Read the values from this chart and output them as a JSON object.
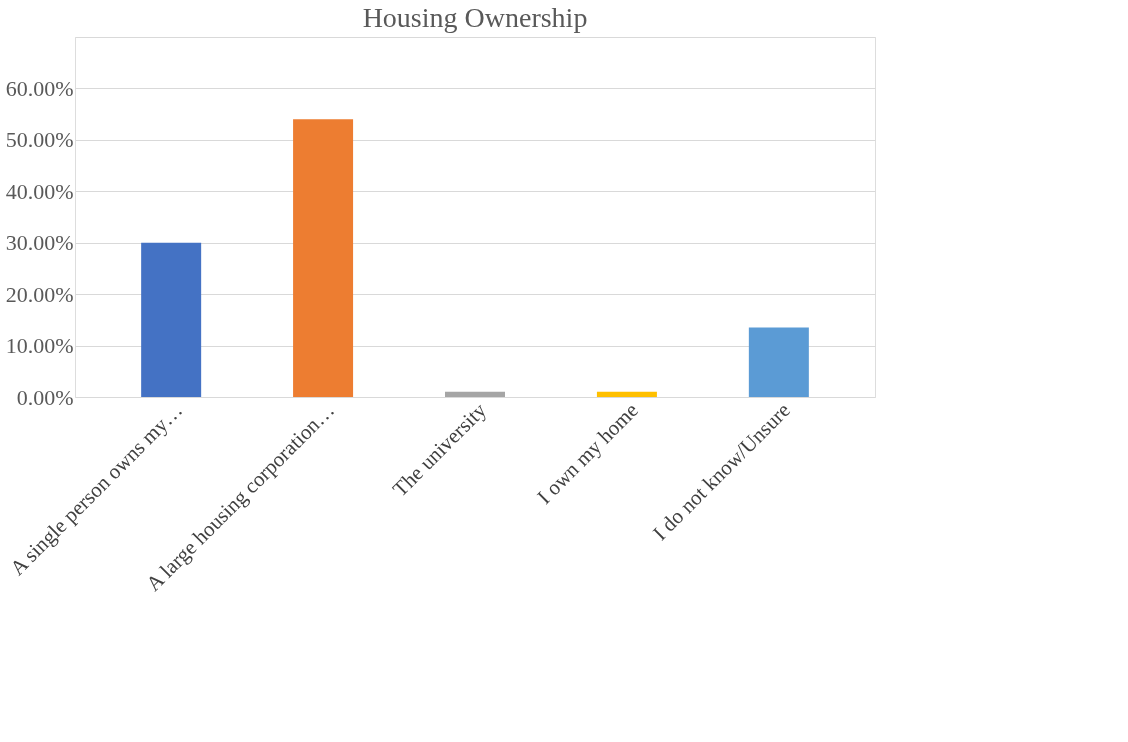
{
  "chart_data": {
    "type": "bar",
    "title": "Housing Ownership",
    "categories": [
      "A single person owns my…",
      "A large housing corporation…",
      "The university",
      "I own my home",
      "I do not know/Unsure"
    ],
    "values": [
      30,
      54,
      1,
      1,
      13.5
    ],
    "colors": [
      "#4472c4",
      "#ed7d31",
      "#a5a5a5",
      "#ffc000",
      "#5b9bd5"
    ],
    "ylim": [
      0,
      70
    ],
    "yticks": [
      {
        "value": 0,
        "label": "0.00%"
      },
      {
        "value": 10,
        "label": "10.00%"
      },
      {
        "value": 20,
        "label": "20.00%"
      },
      {
        "value": 30,
        "label": "30.00%"
      },
      {
        "value": 40,
        "label": "40.00%"
      },
      {
        "value": 50,
        "label": "50.00%"
      },
      {
        "value": 60,
        "label": "60.00%"
      },
      {
        "value": 70,
        "label": null
      }
    ],
    "grid": "y"
  }
}
